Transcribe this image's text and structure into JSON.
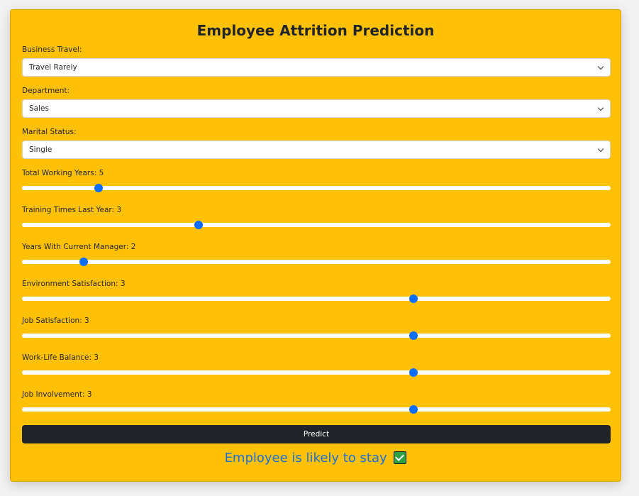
{
  "form": {
    "title": "Employee Attrition Prediction",
    "business_travel": {
      "label": "Business Travel:",
      "value": "Travel Rarely"
    },
    "department": {
      "label": "Department:",
      "value": "Sales"
    },
    "marital_status": {
      "label": "Marital Status:",
      "value": "Single"
    },
    "sliders": [
      {
        "label": "Total Working Years: 5",
        "value": 5,
        "fill": 0.13
      },
      {
        "label": "Training Times Last Year: 3",
        "value": 3,
        "fill": 0.3
      },
      {
        "label": "Years With Current Manager: 2",
        "value": 2,
        "fill": 0.105
      },
      {
        "label": "Environment Satisfaction: 3",
        "value": 3,
        "fill": 0.665
      },
      {
        "label": "Job Satisfaction: 3",
        "value": 3,
        "fill": 0.665
      },
      {
        "label": "Work-Life Balance: 3",
        "value": 3,
        "fill": 0.665
      },
      {
        "label": "Job Involvement: 3",
        "value": 3,
        "fill": 0.665
      }
    ],
    "predict_label": "Predict",
    "result_text": "Employee is likely to stay"
  },
  "colors": {
    "card_background": "#ffc107",
    "slider_thumb": "#0d6efd",
    "button_background": "#212529",
    "result_text": "#1a6fd4"
  },
  "icons": {
    "result": "check-mark-icon"
  }
}
